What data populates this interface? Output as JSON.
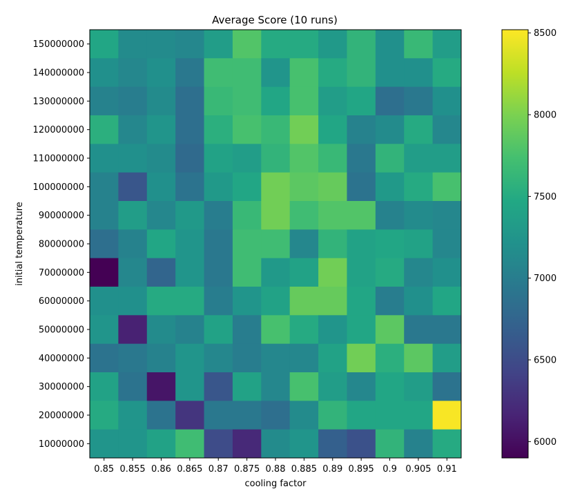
{
  "chart_data": {
    "type": "heatmap",
    "title": "Average Score (10 runs)",
    "xlabel": "cooling factor",
    "ylabel": "initial temperature",
    "x": [
      "0.85",
      "0.855",
      "0.86",
      "0.865",
      "0.87",
      "0.875",
      "0.88",
      "0.885",
      "0.89",
      "0.895",
      "0.9",
      "0.905",
      "0.91"
    ],
    "y": [
      "150000000",
      "140000000",
      "130000000",
      "120000000",
      "110000000",
      "100000000",
      "90000000",
      "80000000",
      "70000000",
      "60000000",
      "50000000",
      "40000000",
      "30000000",
      "20000000",
      "10000000"
    ],
    "values": [
      [
        7450,
        7150,
        7150,
        7100,
        7350,
        7800,
        7500,
        7500,
        7300,
        7600,
        7200,
        7650,
        7350
      ],
      [
        7200,
        7100,
        7200,
        6950,
        7700,
        7700,
        7250,
        7750,
        7500,
        7600,
        7200,
        7200,
        7500
      ],
      [
        7050,
        7000,
        7150,
        6850,
        7650,
        7700,
        7450,
        7750,
        7350,
        7450,
        6850,
        6950,
        7200
      ],
      [
        7550,
        7100,
        7250,
        6850,
        7550,
        7750,
        7650,
        7950,
        7450,
        7050,
        7150,
        7500,
        7100
      ],
      [
        7200,
        7200,
        7150,
        6800,
        7400,
        7350,
        7600,
        7800,
        7650,
        6950,
        7600,
        7350,
        7350
      ],
      [
        7050,
        6600,
        7200,
        6900,
        7300,
        7450,
        7950,
        7850,
        7900,
        6900,
        7300,
        7500,
        7750
      ],
      [
        7050,
        7350,
        7100,
        7300,
        7000,
        7650,
        7950,
        7700,
        7800,
        7800,
        7050,
        7150,
        7100
      ],
      [
        6850,
        7050,
        7450,
        7250,
        6950,
        7700,
        7700,
        7100,
        7600,
        7400,
        7450,
        7400,
        7100
      ],
      [
        5900,
        7100,
        6750,
        7250,
        6950,
        7700,
        7300,
        7400,
        7950,
        7400,
        7500,
        7100,
        7200
      ],
      [
        7200,
        7200,
        7500,
        7500,
        7000,
        7250,
        7400,
        7900,
        7900,
        7450,
        7000,
        7200,
        7450
      ],
      [
        7250,
        6150,
        7150,
        7050,
        7400,
        7000,
        7750,
        7500,
        7250,
        7450,
        7850,
        6950,
        6950
      ],
      [
        6900,
        6950,
        7050,
        7250,
        7100,
        7000,
        7100,
        7100,
        7400,
        7950,
        7550,
        7850,
        7350
      ],
      [
        7400,
        6900,
        6050,
        7250,
        6600,
        7400,
        7100,
        7750,
        7350,
        7100,
        7450,
        7350,
        6900
      ],
      [
        7500,
        7250,
        6900,
        6300,
        6950,
        6950,
        6850,
        7150,
        7600,
        7450,
        7450,
        7450,
        8500
      ],
      [
        7250,
        7250,
        7400,
        7700,
        6500,
        6200,
        7150,
        7250,
        6700,
        6550,
        7600,
        7050,
        7500
      ]
    ],
    "colorbar": {
      "min": 5900,
      "max": 8520,
      "ticks": [
        "6000",
        "6500",
        "7000",
        "7500",
        "8000",
        "8500"
      ]
    },
    "colormap": "viridis",
    "grid": false,
    "legend": "colorbar-right"
  }
}
